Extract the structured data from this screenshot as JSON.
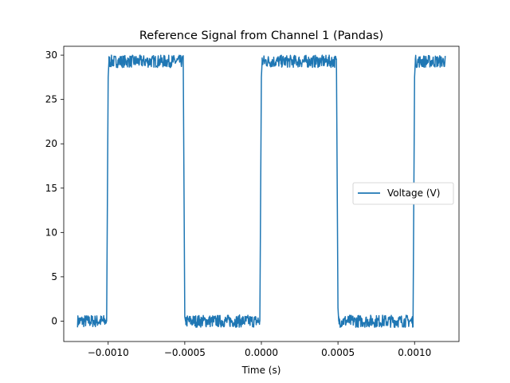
{
  "chart_data": {
    "type": "line",
    "title": "Reference Signal from Channel 1 (Pandas)",
    "xlabel": "Time (s)",
    "ylabel": "",
    "xlim": [
      -0.00129,
      0.00129
    ],
    "ylim": [
      -2.3,
      31.0
    ],
    "x_ticks": [
      -0.001,
      -0.0005,
      0.0,
      0.0005,
      0.001
    ],
    "x_tick_labels": [
      "−0.0010",
      "−0.0005",
      "0.0000",
      "0.0005",
      "0.0010"
    ],
    "y_ticks": [
      0,
      5,
      10,
      15,
      20,
      25,
      30
    ],
    "y_tick_labels": [
      "0",
      "5",
      "10",
      "15",
      "20",
      "25",
      "30"
    ],
    "grid": false,
    "legend_position": "center-right",
    "series": [
      {
        "name": "Voltage (V)",
        "color": "#1f77b4",
        "x": [
          -0.0012,
          -0.00101,
          -0.001,
          -0.000995,
          -0.00051,
          -0.0005,
          -0.000495,
          -1e-05,
          0.0,
          5e-06,
          0.00049,
          0.0005,
          0.000505,
          0.00099,
          0.001,
          0.001005,
          0.0012
        ],
        "y": [
          0.0,
          0.0,
          27.5,
          29.3,
          29.3,
          0.5,
          0.0,
          0.0,
          27.5,
          29.3,
          29.3,
          1.5,
          0.0,
          0.0,
          27.5,
          29.3,
          29.3
        ],
        "noise_band": [
          -0.7,
          0.7
        ]
      }
    ]
  }
}
